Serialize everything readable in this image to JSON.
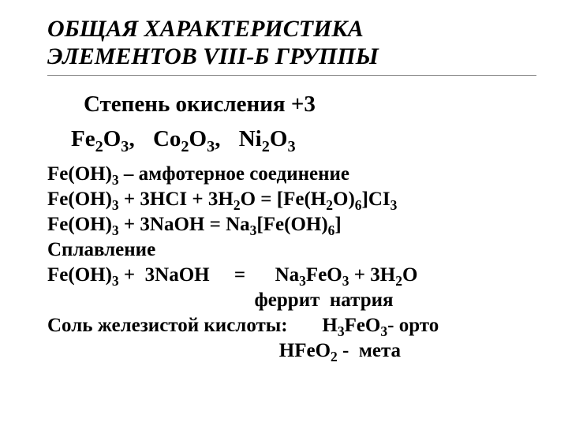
{
  "title_line1": "ОБЩАЯ ХАРАКТЕРИСТИКА",
  "title_line2": "ЭЛЕМЕНТОВ VIII-Б ГРУППЫ",
  "subheading": "Степень окисления +3",
  "oxide1_base": "Fe",
  "oxide1_s1": "2",
  "oxide1_mid": "O",
  "oxide1_s2": "3",
  "comma": ",",
  "oxide2_base": "Co",
  "oxide2_s1": "2",
  "oxide2_mid": "O",
  "oxide2_s2": "3",
  "oxide3_base": "Ni",
  "oxide3_s1": "2",
  "oxide3_mid": "O",
  "oxide3_s2": "3",
  "l1a": "Fe(OH)",
  "l1s": "3",
  "l1b": " – амфотерное соединение",
  "l2a": "Fe(OH)",
  "l2s1": "3",
  "l2b": " + 3HCI + 3H",
  "l2s2": "2",
  "l2c": "O = [Fe(H",
  "l2s3": "2",
  "l2d": "O)",
  "l2s4": "6",
  "l2e": "]CI",
  "l2s5": "3",
  "l3a": "Fe(OH)",
  "l3s1": "3",
  "l3b": " + 3NaOH = Na",
  "l3s2": "3",
  "l3c": "[Fe(OH)",
  "l3s3": "6",
  "l3d": "]",
  "l4": "Сплавление",
  "l5a": "Fe(OH)",
  "l5s1": "3",
  "l5b": " +  3NaOH     =      Na",
  "l5s2": "3",
  "l5c": "FeO",
  "l5s3": "3",
  "l5d": " + 3H",
  "l5s4": "2",
  "l5e": "O",
  "l6": "                                          феррит  натрия",
  "l7a": "Соль железистой кислоты:       H",
  "l7s1": "3",
  "l7b": "FeO",
  "l7s2": "3",
  "l7c": "- орто",
  "l8a": "                                               HFeO",
  "l8s": "2",
  "l8b": " -  мета",
  "colors": {
    "text": "#000000",
    "background": "#ffffff",
    "rule": "#888888"
  },
  "fonts": {
    "title_pt": 30,
    "sub_pt": 29,
    "body_pt": 25,
    "family": "Times New Roman"
  }
}
